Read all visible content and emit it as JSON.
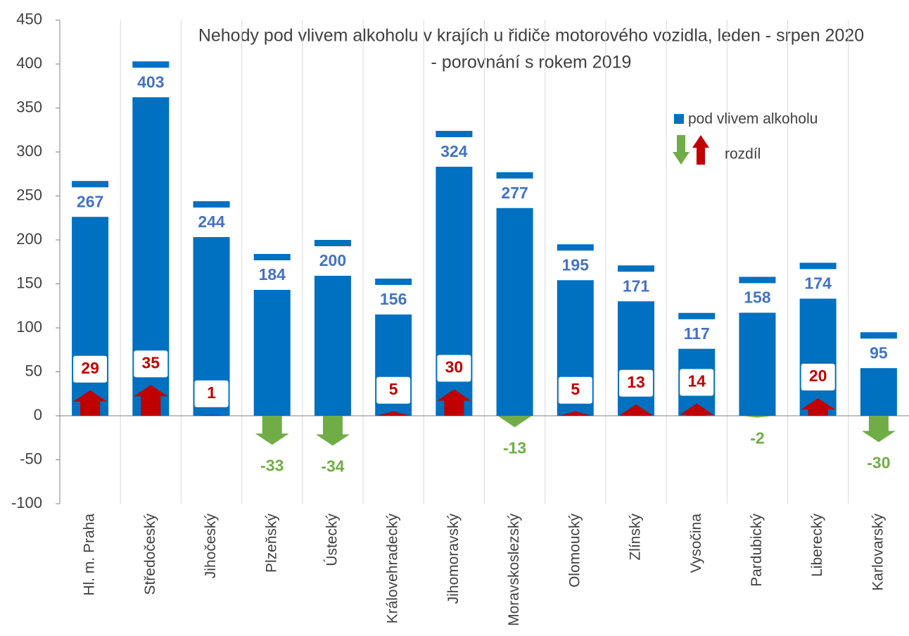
{
  "chart_data": {
    "type": "bar",
    "title": [
      "Nehody pod vlivem alkoholu v krajích u řidiče motorového vozidla, leden - srpen 2020",
      "- porovnání s rokem 2019"
    ],
    "categories": [
      "Hl. m. Praha",
      "Středočeský",
      "Jihočeský",
      "Plzeňský",
      "Ústecký",
      "Královehradecký",
      "Jihomoravský",
      "Moravskoslezský",
      "Olomoucký",
      "Zlínský",
      "Vysočina",
      "Pardubický",
      "Liberecký",
      "Karlovarský"
    ],
    "series": [
      {
        "name": "pod vlivem alkoholu",
        "color": "#0070c0",
        "label_color": "#4472c4",
        "values": [
          267,
          403,
          244,
          184,
          200,
          156,
          324,
          277,
          195,
          171,
          117,
          158,
          174,
          95
        ]
      },
      {
        "name": "rozdíl",
        "color": "#c00000",
        "negative_color": "#70ad47",
        "values": [
          29,
          35,
          1,
          -33,
          -34,
          5,
          30,
          -13,
          5,
          13,
          14,
          -2,
          20,
          -30
        ]
      }
    ],
    "ylim": [
      -100,
      450
    ],
    "yticks": [
      -100,
      -50,
      0,
      50,
      100,
      150,
      200,
      250,
      300,
      350,
      400,
      450
    ],
    "grid": false
  }
}
